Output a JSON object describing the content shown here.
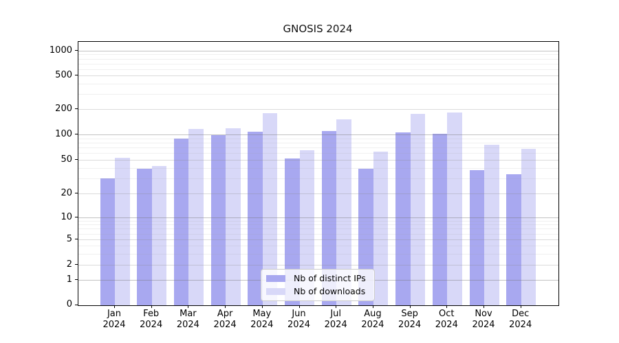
{
  "title": "GNOSIS 2024",
  "y_axis": {
    "ticks": [
      "0",
      "1",
      "2",
      "5",
      "10",
      "20",
      "50",
      "100",
      "200",
      "500",
      "1000"
    ]
  },
  "x_axis": {
    "labels": [
      [
        "Jan",
        "2024"
      ],
      [
        "Feb",
        "2024"
      ],
      [
        "Mar",
        "2024"
      ],
      [
        "Apr",
        "2024"
      ],
      [
        "May",
        "2024"
      ],
      [
        "Jun",
        "2024"
      ],
      [
        "Jul",
        "2024"
      ],
      [
        "Aug",
        "2024"
      ],
      [
        "Sep",
        "2024"
      ],
      [
        "Oct",
        "2024"
      ],
      [
        "Nov",
        "2024"
      ],
      [
        "Dec",
        "2024"
      ]
    ]
  },
  "legend": {
    "items": [
      {
        "label": "Nb of distinct IPs",
        "color": "#a8a8f0"
      },
      {
        "label": "Nb of downloads",
        "color": "#d8d8f8"
      }
    ]
  },
  "chart_data": {
    "type": "bar",
    "title": "GNOSIS 2024",
    "categories": [
      "Jan 2024",
      "Feb 2024",
      "Mar 2024",
      "Apr 2024",
      "May 2024",
      "Jun 2024",
      "Jul 2024",
      "Aug 2024",
      "Sep 2024",
      "Oct 2024",
      "Nov 2024",
      "Dec 2024"
    ],
    "series": [
      {
        "name": "Nb of distinct IPs",
        "color": "#a8a8f0",
        "values": [
          30,
          39,
          90,
          98,
          108,
          52,
          110,
          39,
          105,
          101,
          38,
          34
        ]
      },
      {
        "name": "Nb of downloads",
        "color": "#d8d8f8",
        "values": [
          53,
          42,
          117,
          118,
          178,
          65,
          152,
          63,
          175,
          183,
          75,
          67
        ]
      }
    ],
    "yscale": "symlog",
    "yticks": [
      0,
      1,
      2,
      5,
      10,
      20,
      50,
      100,
      200,
      500,
      1000
    ],
    "ylim": [
      0,
      1300
    ],
    "grid": true,
    "legend_position": "lower center"
  }
}
